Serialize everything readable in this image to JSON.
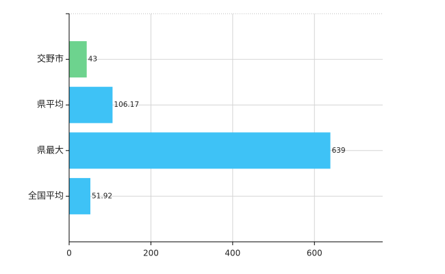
{
  "chart_data": {
    "type": "hbar",
    "categories": [
      "交野市",
      "県平均",
      "県最大",
      "全国平均"
    ],
    "values": [
      43,
      106.17,
      639,
      51.92
    ],
    "colors": [
      "#6dd38e",
      "#3ec2f6",
      "#3ec2f6",
      "#3ec2f6"
    ],
    "xlim": [
      0,
      767
    ],
    "xticks": [
      0,
      200,
      400,
      600
    ],
    "grid": true
  }
}
